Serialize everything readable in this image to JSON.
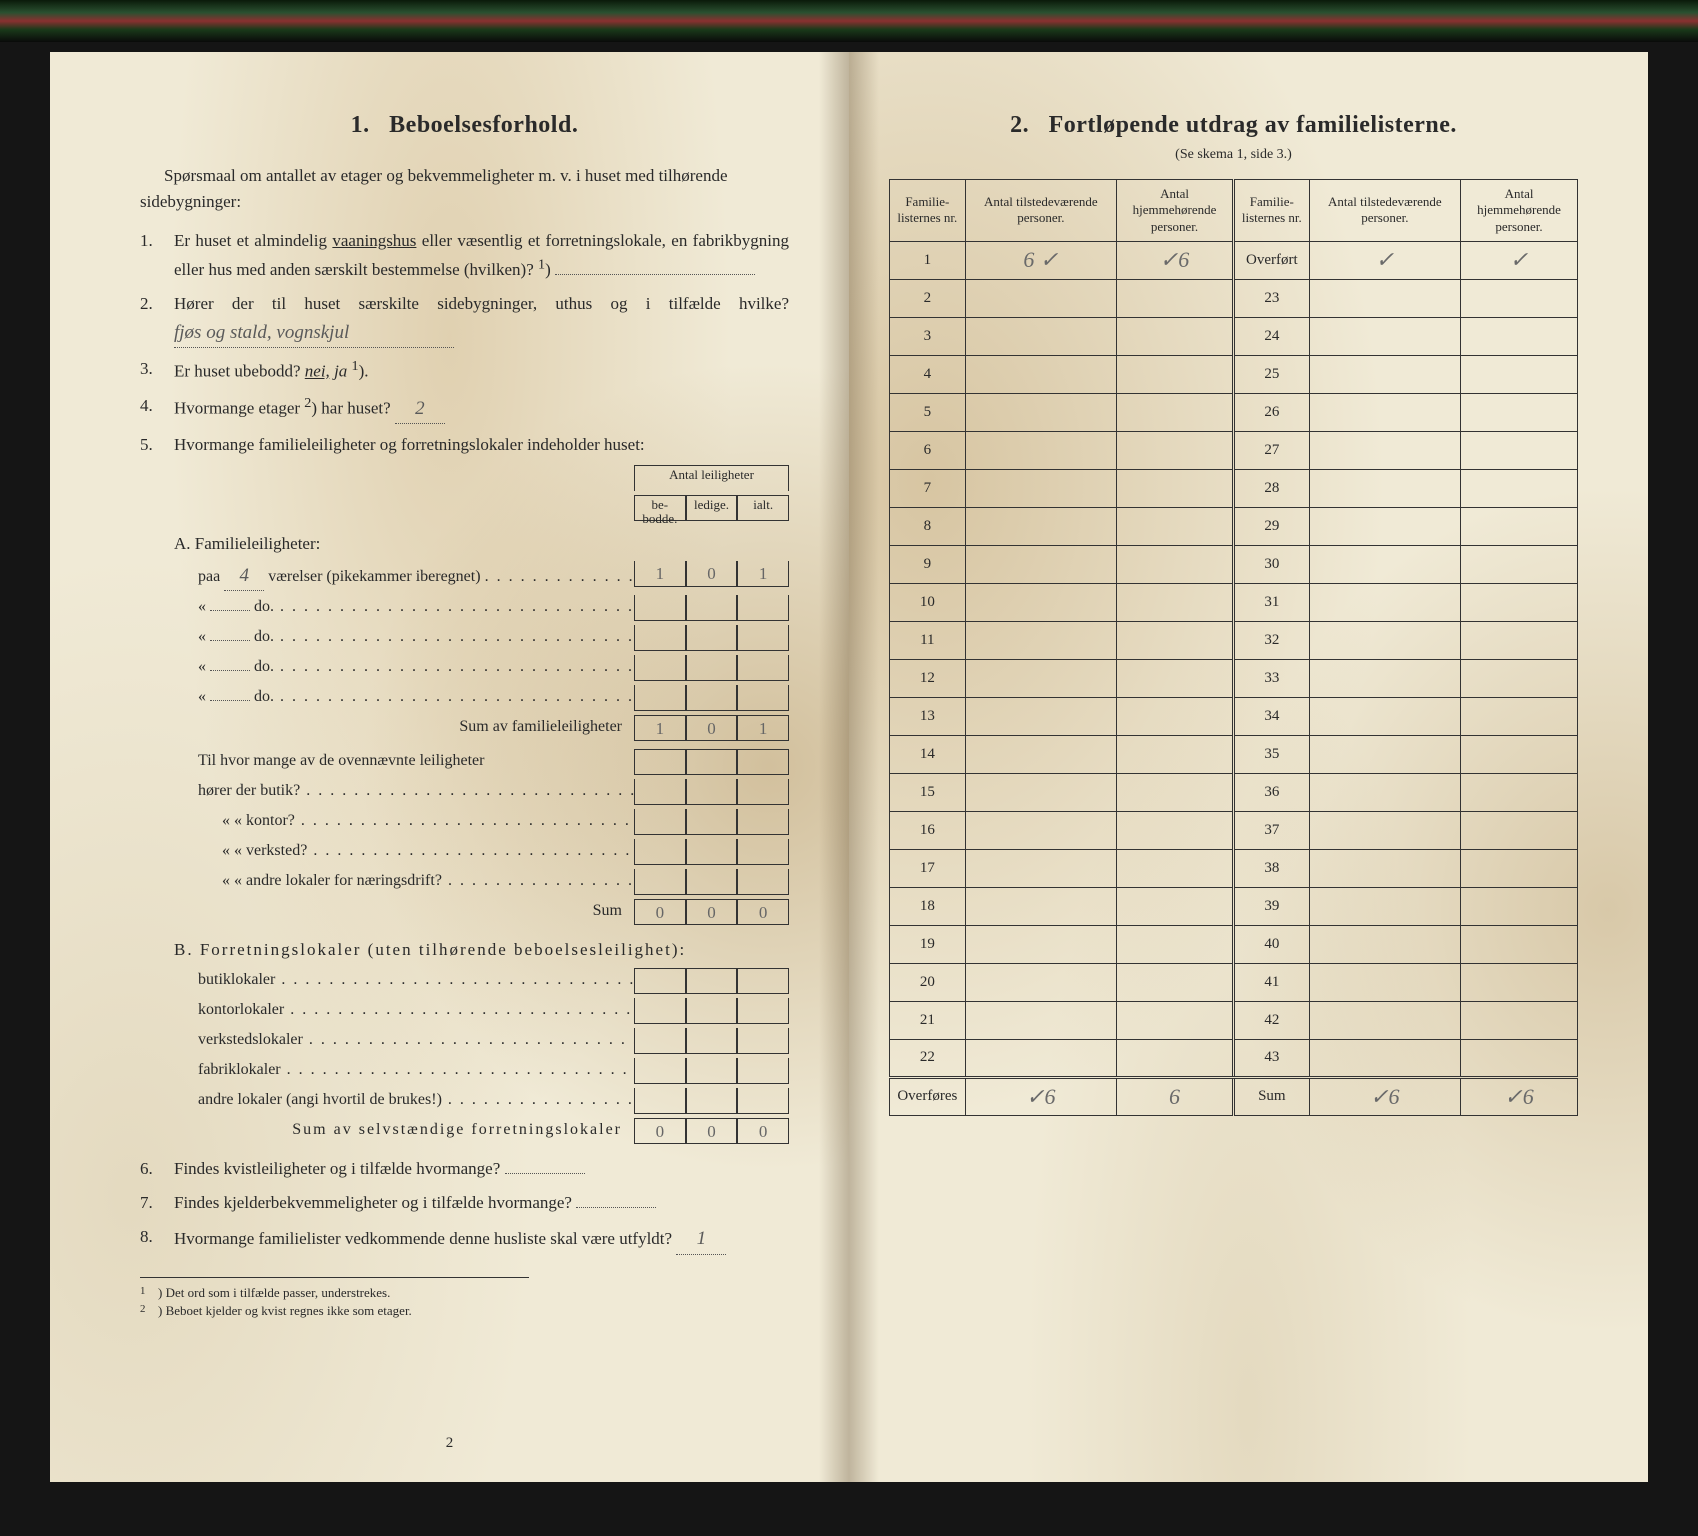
{
  "left": {
    "section_number": "1.",
    "section_title": "Beboelsesforhold.",
    "intro": "Spørsmaal om antallet av etager og bekvemmeligheter m. v. i huset med tilhørende sidebygninger:",
    "q1_num": "1.",
    "q1": "Er huset et almindelig vaaningshus eller væsentlig et forretningslokale, en fabrikbygning eller hus med anden særskilt bestemmelse (hvilken)?",
    "q1_sup": "1",
    "q2_num": "2.",
    "q2_a": "Hører der til huset særskilte sidebygninger, uthus og i tilfælde hvilke?",
    "q2_hand": "fjøs og stald, vognskjul",
    "q3_num": "3.",
    "q3": "Er huset ubebodd? ",
    "q3_nei": "nei,",
    "q3_ja": "ja",
    "q3_sup": "1",
    "q4_num": "4.",
    "q4_a": "Hvormange etager",
    "q4_sup": "2",
    "q4_b": ") har huset?",
    "q4_hand": "2",
    "q5_num": "5.",
    "q5": "Hvormange familieleiligheter og forretningslokaler indeholder huset:",
    "antal_header": "Antal leiligheter",
    "col_bebodde": "be-\nbodde.",
    "col_ledige": "ledige.",
    "col_ialt": "ialt.",
    "A_title": "A. Familieleiligheter:",
    "A_paa": "paa",
    "A_paa_hand": "4",
    "A_vaer": "værelser (pikekammer iberegnet)",
    "A_r1_b": "1",
    "A_r1_l": "0",
    "A_r1_i": "1",
    "A_do": "do.",
    "A_sum_label": "Sum av familieleiligheter",
    "A_sum_b": "1",
    "A_sum_l": "0",
    "A_sum_i": "1",
    "A_q_intro": "Til hvor mange av de ovennævnte leiligheter",
    "A_q1": "hører der butik?",
    "A_q2": "«     « kontor?",
    "A_q3": "«     « verksted?",
    "A_q4": "«     « andre lokaler for næringsdrift?",
    "A_sum2": "Sum",
    "A_s2_b": "0",
    "A_s2_l": "0",
    "A_s2_i": "0",
    "B_title": "B. Forretningslokaler (uten tilhørende beboelsesleilighet):",
    "B_1": "butiklokaler",
    "B_2": "kontorlokaler",
    "B_3": "verkstedslokaler",
    "B_4": "fabriklokaler",
    "B_5": "andre lokaler (angi hvortil de brukes!)",
    "B_sum": "Sum av selvstændige forretningslokaler",
    "B_s_b": "0",
    "B_s_l": "0",
    "B_s_i": "0",
    "q6_num": "6.",
    "q6": "Findes kvistleiligheter og i tilfælde hvormange?",
    "q7_num": "7.",
    "q7": "Findes kjelderbekvemmeligheter og i tilfælde hvormange?",
    "q8_num": "8.",
    "q8": "Hvormange familielister vedkommende denne husliste skal være utfyldt?",
    "q8_hand": "1",
    "fn1": "Det ord som i tilfælde passer, understrekes.",
    "fn2": "Beboet kjelder og kvist regnes ikke som etager.",
    "page_num": "2"
  },
  "right": {
    "section_number": "2.",
    "section_title": "Fortløpende utdrag av familielisterne.",
    "sub_note": "(Se skema 1, side 3.)",
    "h_famnr": "Familie-\nlisternes\nnr.",
    "h_tilstede": "Antal\ntilstedeværende\npersoner.",
    "h_hjemme": "Antal\nhjemmehørende\npersoner.",
    "overfort": "Overført",
    "overfores": "Overføres",
    "sum": "Sum",
    "rowsA": [
      "1",
      "2",
      "3",
      "4",
      "5",
      "6",
      "7",
      "8",
      "9",
      "10",
      "11",
      "12",
      "13",
      "14",
      "15",
      "16",
      "17",
      "18",
      "19",
      "20",
      "21",
      "22"
    ],
    "rowsB": [
      "23",
      "24",
      "25",
      "26",
      "27",
      "28",
      "29",
      "30",
      "31",
      "32",
      "33",
      "34",
      "35",
      "36",
      "37",
      "38",
      "39",
      "40",
      "41",
      "42",
      "43"
    ],
    "r1_tilstede_top": "✓",
    "r1_tilstede": "6 ✓",
    "r1_hjemme_top": "✓",
    "r1_hjemme": "✓6",
    "ov_tilstede": "✓",
    "ov_hjemme": "✓",
    "ovf_tilstede": "✓6",
    "ovf_hjemme": "6",
    "sum_tilstede": "✓6",
    "sum_hjemme": "✓6"
  },
  "colors": {
    "paper": "#f0ead6",
    "stain": "#c8aa78",
    "ink": "#2a2a2a",
    "pencil": "#6a6a6a"
  }
}
